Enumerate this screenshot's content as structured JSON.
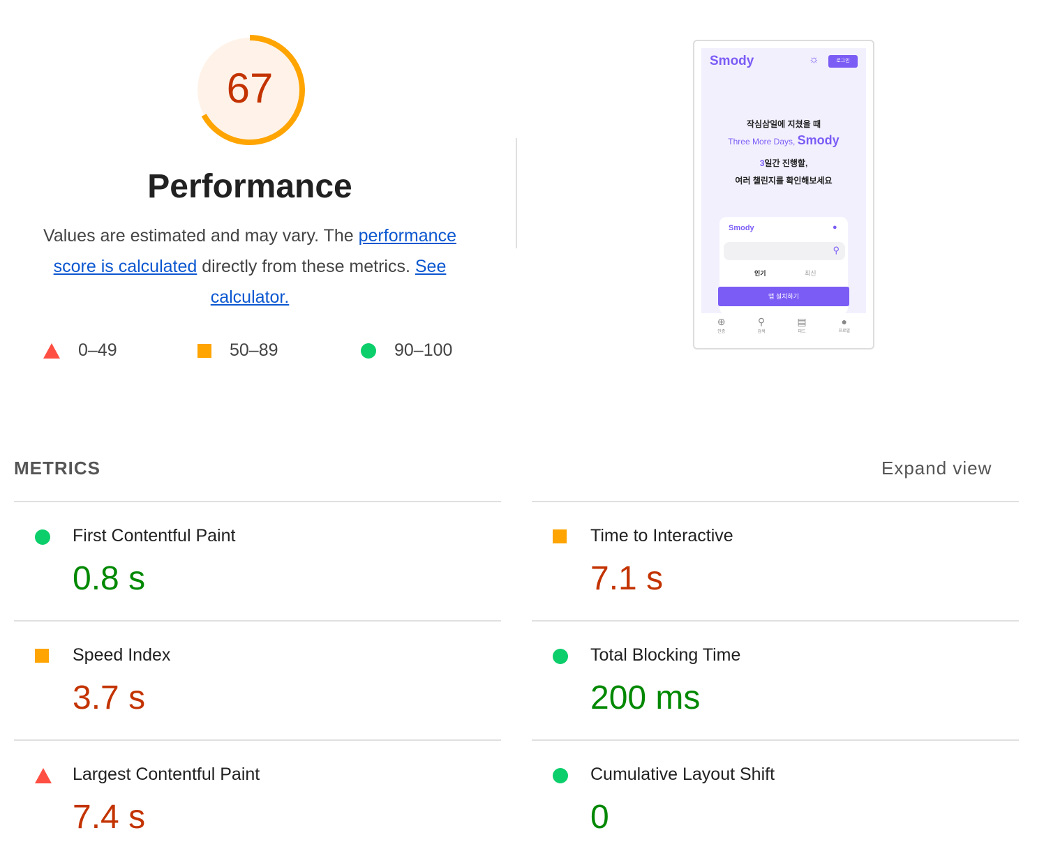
{
  "gauge": {
    "score": 67,
    "title": "Performance",
    "arc_color": "#ffa400",
    "bg_color": "#fff3e9",
    "text_color": "#c33300"
  },
  "description": {
    "text1": "Values are estimated and may vary. The ",
    "link1": "performance score is calculated",
    "text2": " directly from these metrics. ",
    "link2": "See calculator."
  },
  "legend": [
    {
      "icon": "triangle-icon",
      "label": "0–49",
      "color": "#ff4e42"
    },
    {
      "icon": "square-icon",
      "label": "50–89",
      "color": "#ffa400"
    },
    {
      "icon": "circle-icon",
      "label": "90–100",
      "color": "#0cce6b"
    }
  ],
  "screenshot": {
    "brand": "Smody",
    "login": "로그인",
    "line1": "작심삼일에 지쳤을 때",
    "line2a": "Three More Days,",
    "line2b": "Smody",
    "line3a": "3",
    "line3b": "일간 진행할,",
    "line4": "여러 챌린지를 확인해보세요",
    "inner_brand": "Smody",
    "tab1": "인기",
    "tab2": "최신",
    "install": "앱 설치하기",
    "nav": [
      "인증",
      "검색",
      "피드",
      "프로필"
    ]
  },
  "metrics_header": {
    "title": "METRICS",
    "expand": "Expand view"
  },
  "metrics": [
    {
      "name": "First Contentful Paint",
      "value": "0.8 s",
      "rating": "pass"
    },
    {
      "name": "Time to Interactive",
      "value": "7.1 s",
      "rating": "average"
    },
    {
      "name": "Speed Index",
      "value": "3.7 s",
      "rating": "average"
    },
    {
      "name": "Total Blocking Time",
      "value": "200 ms",
      "rating": "pass"
    },
    {
      "name": "Largest Contentful Paint",
      "value": "7.4 s",
      "rating": "fail"
    },
    {
      "name": "Cumulative Layout Shift",
      "value": "0",
      "rating": "pass"
    }
  ]
}
